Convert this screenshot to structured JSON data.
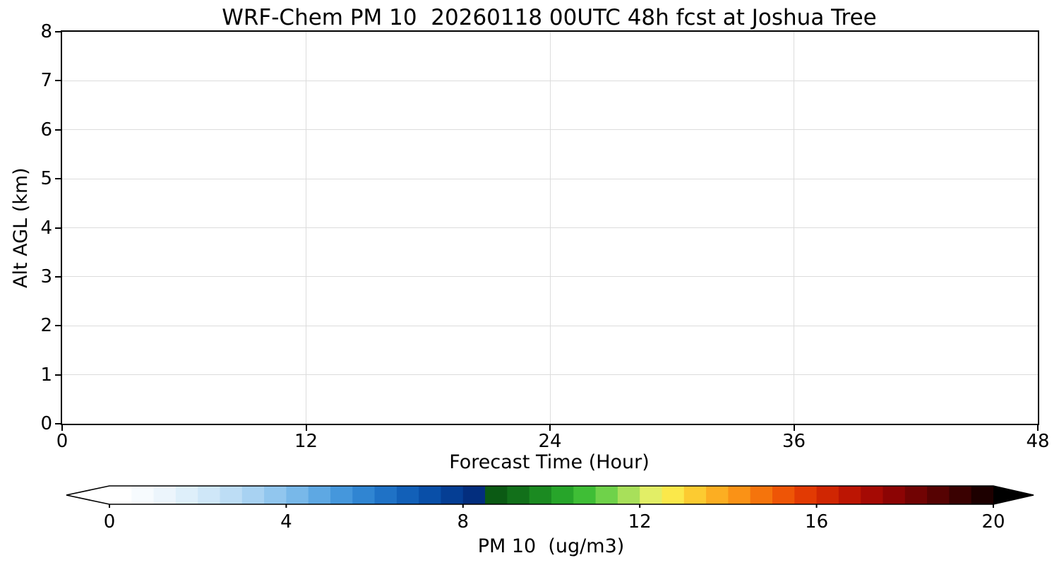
{
  "figure": {
    "background": "#ffffff",
    "frame_color": "#000000"
  },
  "chart_data": {
    "type": "heatmap",
    "title": "WRF-Chem PM 10  20260118 00UTC 48h fcst at Joshua Tree",
    "xlabel": "Forecast Time (Hour)",
    "ylabel": "Alt AGL (km)",
    "xlim": [
      0,
      48
    ],
    "ylim": [
      0,
      8
    ],
    "x_tick_labels": [
      "0",
      "12",
      "24",
      "36",
      "48"
    ],
    "x_tick_values": [
      0,
      12,
      24,
      36,
      48
    ],
    "y_tick_labels": [
      "0",
      "1",
      "2",
      "3",
      "4",
      "5",
      "6",
      "7",
      "8"
    ],
    "y_tick_values": [
      0,
      1,
      2,
      3,
      4,
      5,
      6,
      7,
      8
    ],
    "grid": true,
    "grid_color": "#dcdcdc",
    "plot_area_empty": true,
    "series": [],
    "colorbar": {
      "label": "PM 10  (ug/m3)",
      "orientation": "horizontal",
      "tick_labels": [
        "0",
        "4",
        "8",
        "12",
        "16",
        "20"
      ],
      "tick_values": [
        0,
        4,
        8,
        12,
        16,
        20
      ],
      "vmin": 0,
      "vmax": 20,
      "extend": "both",
      "under_color": "#ffffff",
      "over_color": "#000000",
      "segment_colors": [
        "#ffffff",
        "#f7fbfe",
        "#ecf5fc",
        "#deeffa",
        "#cfe7f8",
        "#bdddf5",
        "#a8d2f2",
        "#91c6ee",
        "#78b8e9",
        "#5ea8e3",
        "#4597dc",
        "#3085d2",
        "#1f72c6",
        "#1260b8",
        "#094fa8",
        "#053e94",
        "#032e7e",
        "#0b5a14",
        "#12701a",
        "#1b8a21",
        "#27a52a",
        "#3fbe36",
        "#6fd24a",
        "#a8e05a",
        "#e2ee66",
        "#fbe84a",
        "#fccb31",
        "#fcae22",
        "#fa9216",
        "#f5740c",
        "#ee5506",
        "#e23a03",
        "#d02602",
        "#bc1503",
        "#a50a04",
        "#8c0404",
        "#710303",
        "#560202",
        "#3a0101",
        "#1d0000"
      ]
    }
  }
}
